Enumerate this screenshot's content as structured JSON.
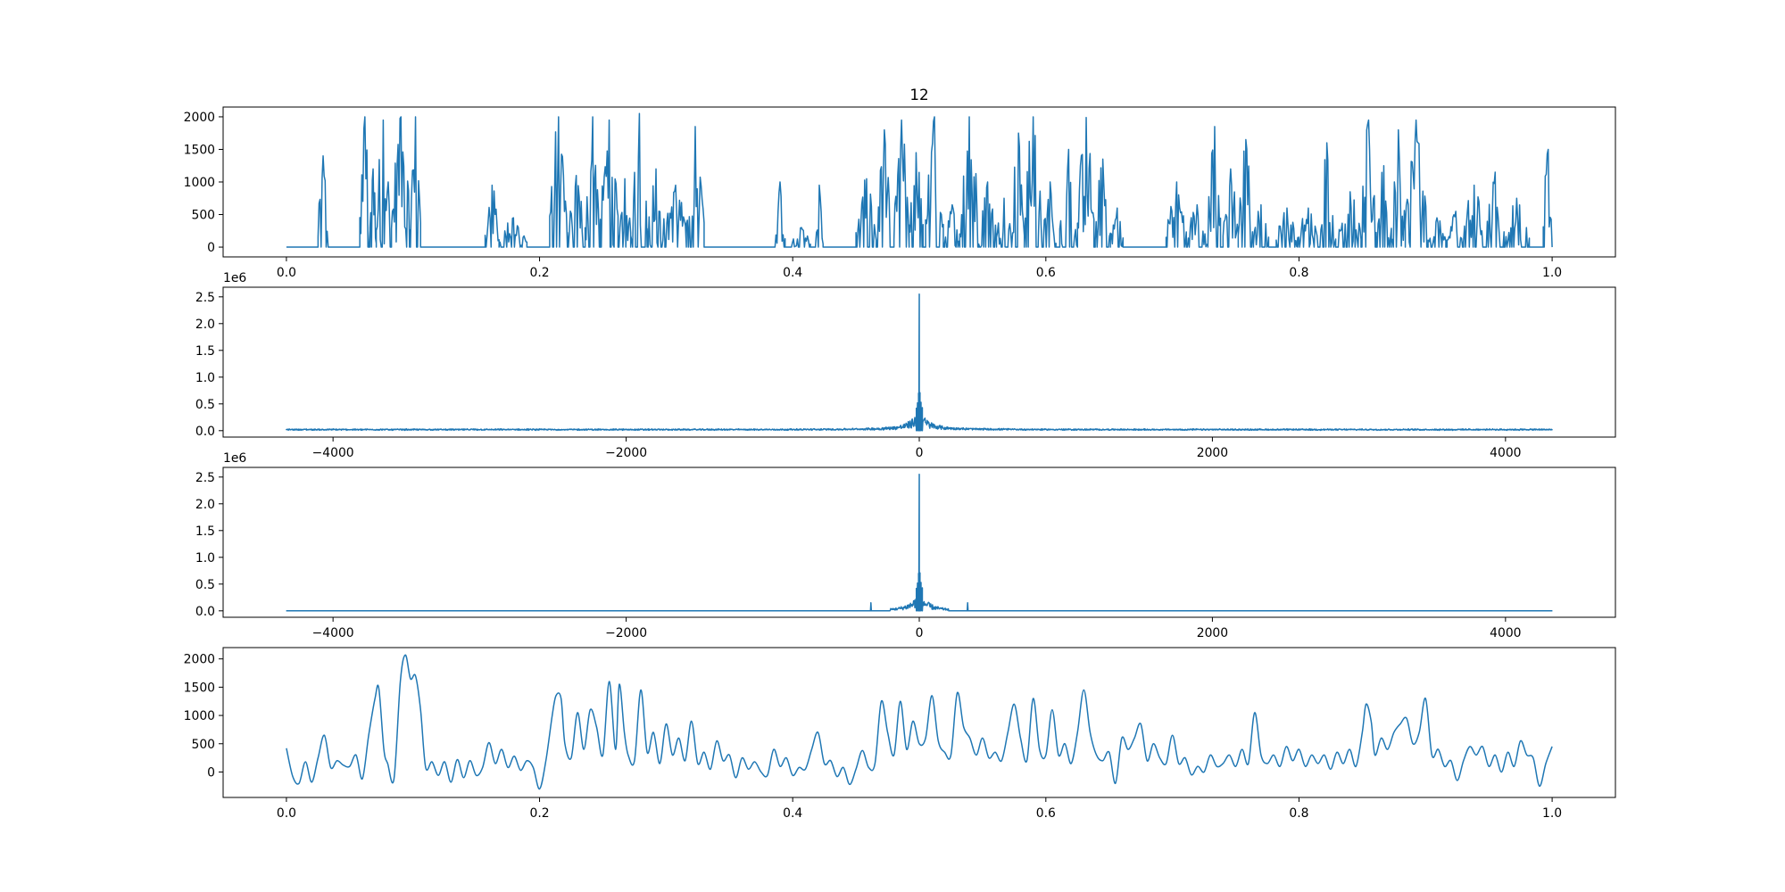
{
  "figure": {
    "background": "#ffffff",
    "line_color": "#1f77b4",
    "axis_color": "#000000"
  },
  "chart_data": [
    {
      "id": "signal",
      "type": "line",
      "title": "12",
      "xlabel": "",
      "ylabel": "",
      "xlim": [
        -0.05,
        1.05
      ],
      "ylim": [
        -150,
        2150
      ],
      "x_ticks": [
        0.0,
        0.2,
        0.4,
        0.6,
        0.8,
        1.0
      ],
      "x_tick_labels": [
        "0.0",
        "0.2",
        "0.4",
        "0.6",
        "0.8",
        "1.0"
      ],
      "y_ticks": [
        0,
        500,
        1000,
        1500,
        2000
      ],
      "y_tick_labels": [
        "0",
        "500",
        "1000",
        "1500",
        "2000"
      ],
      "offset_text": "",
      "grid": false,
      "bursts": [
        [
          0.025,
          0.033,
          1400
        ],
        [
          0.058,
          0.066,
          2000
        ],
        [
          0.066,
          0.071,
          1200
        ],
        [
          0.071,
          0.082,
          1950
        ],
        [
          0.083,
          0.098,
          2000
        ],
        [
          0.098,
          0.106,
          2000
        ],
        [
          0.157,
          0.168,
          950
        ],
        [
          0.168,
          0.19,
          450
        ],
        [
          0.208,
          0.222,
          2000
        ],
        [
          0.222,
          0.236,
          1100
        ],
        [
          0.236,
          0.248,
          2000
        ],
        [
          0.248,
          0.262,
          1950
        ],
        [
          0.262,
          0.272,
          1050
        ],
        [
          0.272,
          0.285,
          2050
        ],
        [
          0.285,
          0.299,
          1200
        ],
        [
          0.299,
          0.316,
          950
        ],
        [
          0.316,
          0.33,
          1850
        ],
        [
          0.386,
          0.394,
          1000
        ],
        [
          0.399,
          0.414,
          300
        ],
        [
          0.418,
          0.424,
          950
        ],
        [
          0.45,
          0.466,
          1050
        ],
        [
          0.467,
          0.477,
          1800
        ],
        [
          0.48,
          0.492,
          1950
        ],
        [
          0.492,
          0.503,
          1450
        ],
        [
          0.505,
          0.519,
          2000
        ],
        [
          0.52,
          0.532,
          650
        ],
        [
          0.532,
          0.547,
          2000
        ],
        [
          0.547,
          0.561,
          1000
        ],
        [
          0.561,
          0.573,
          750
        ],
        [
          0.573,
          0.583,
          1750
        ],
        [
          0.583,
          0.597,
          2000
        ],
        [
          0.598,
          0.608,
          1000
        ],
        [
          0.611,
          0.625,
          1500
        ],
        [
          0.625,
          0.638,
          1990
        ],
        [
          0.639,
          0.651,
          1350
        ],
        [
          0.651,
          0.661,
          600
        ],
        [
          0.695,
          0.711,
          1000
        ],
        [
          0.711,
          0.728,
          650
        ],
        [
          0.728,
          0.738,
          1850
        ],
        [
          0.74,
          0.752,
          1200
        ],
        [
          0.752,
          0.764,
          1650
        ],
        [
          0.764,
          0.776,
          650
        ],
        [
          0.782,
          0.799,
          600
        ],
        [
          0.799,
          0.815,
          600
        ],
        [
          0.815,
          0.829,
          1600
        ],
        [
          0.831,
          0.849,
          850
        ],
        [
          0.849,
          0.861,
          1950
        ],
        [
          0.861,
          0.873,
          1250
        ],
        [
          0.873,
          0.884,
          1800
        ],
        [
          0.884,
          0.901,
          1950
        ],
        [
          0.902,
          0.916,
          450
        ],
        [
          0.917,
          0.93,
          550
        ],
        [
          0.93,
          0.946,
          950
        ],
        [
          0.948,
          0.962,
          1150
        ],
        [
          0.962,
          0.982,
          750
        ],
        [
          0.993,
          1.0,
          1500
        ]
      ]
    },
    {
      "id": "fft-spectrum",
      "type": "line",
      "title": "",
      "xlabel": "",
      "ylabel": "",
      "xlim": [
        -4750,
        4750
      ],
      "ylim": [
        -120000,
        2680000
      ],
      "x_ticks": [
        -4000,
        -2000,
        0,
        2000,
        4000
      ],
      "x_tick_labels": [
        "−4000",
        "−2000",
        "0",
        "2000",
        "4000"
      ],
      "y_ticks": [
        0,
        500000,
        1000000,
        1500000,
        2000000,
        2500000
      ],
      "y_tick_labels": [
        "0.0",
        "0.5",
        "1.0",
        "1.5",
        "2.0",
        "2.5"
      ],
      "offset_text": "1e6",
      "grid": false,
      "freq_range": [
        -4320,
        4320
      ],
      "dc_peak": 2550000,
      "near_peaks": [
        [
          -5,
          700000
        ],
        [
          5,
          710000
        ],
        [
          -12,
          520000
        ],
        [
          12,
          530000
        ],
        [
          -20,
          420000
        ],
        [
          21,
          430000
        ]
      ],
      "floor": 25000
    },
    {
      "id": "filtered-spectrum",
      "type": "line",
      "title": "",
      "xlabel": "",
      "ylabel": "",
      "xlim": [
        -4750,
        4750
      ],
      "ylim": [
        -120000,
        2680000
      ],
      "x_ticks": [
        -4000,
        -2000,
        0,
        2000,
        4000
      ],
      "x_tick_labels": [
        "−4000",
        "−2000",
        "0",
        "2000",
        "4000"
      ],
      "y_ticks": [
        0,
        500000,
        1000000,
        1500000,
        2000000,
        2500000
      ],
      "y_tick_labels": [
        "0.0",
        "0.5",
        "1.0",
        "1.5",
        "2.0",
        "2.5"
      ],
      "offset_text": "1e6",
      "grid": false,
      "freq_range": [
        -4320,
        4320
      ],
      "dc_peak": 2550000,
      "near_peaks": [
        [
          -5,
          700000
        ],
        [
          5,
          710000
        ],
        [
          -12,
          520000
        ],
        [
          12,
          530000
        ],
        [
          -20,
          420000
        ],
        [
          21,
          430000
        ]
      ],
      "cutoff": 200,
      "isolated_peaks": [
        [
          -330,
          150000
        ],
        [
          330,
          150000
        ],
        [
          -190,
          110000
        ],
        [
          190,
          100000
        ]
      ]
    },
    {
      "id": "reconstructed-signal",
      "type": "line",
      "title": "",
      "xlabel": "",
      "ylabel": "",
      "xlim": [
        -0.05,
        1.05
      ],
      "ylim": [
        -450,
        2200
      ],
      "x_ticks": [
        0.0,
        0.2,
        0.4,
        0.6,
        0.8,
        1.0
      ],
      "x_tick_labels": [
        "0.0",
        "0.2",
        "0.4",
        "0.6",
        "0.8",
        "1.0"
      ],
      "y_ticks": [
        0,
        500,
        1000,
        1500,
        2000
      ],
      "y_tick_labels": [
        "0",
        "500",
        "1000",
        "1500",
        "2000"
      ],
      "offset_text": "",
      "grid": false,
      "points": [
        [
          0.0,
          420
        ],
        [
          0.005,
          -80
        ],
        [
          0.01,
          -200
        ],
        [
          0.015,
          180
        ],
        [
          0.02,
          -180
        ],
        [
          0.025,
          250
        ],
        [
          0.03,
          650
        ],
        [
          0.035,
          80
        ],
        [
          0.04,
          200
        ],
        [
          0.045,
          120
        ],
        [
          0.05,
          100
        ],
        [
          0.055,
          300
        ],
        [
          0.06,
          -120
        ],
        [
          0.065,
          650
        ],
        [
          0.07,
          1300
        ],
        [
          0.073,
          1480
        ],
        [
          0.077,
          400
        ],
        [
          0.08,
          150
        ],
        [
          0.085,
          -120
        ],
        [
          0.09,
          1600
        ],
        [
          0.094,
          2070
        ],
        [
          0.098,
          1650
        ],
        [
          0.102,
          1700
        ],
        [
          0.106,
          1100
        ],
        [
          0.11,
          80
        ],
        [
          0.115,
          180
        ],
        [
          0.12,
          -60
        ],
        [
          0.125,
          180
        ],
        [
          0.13,
          -180
        ],
        [
          0.135,
          220
        ],
        [
          0.14,
          -100
        ],
        [
          0.145,
          200
        ],
        [
          0.15,
          -60
        ],
        [
          0.155,
          80
        ],
        [
          0.16,
          520
        ],
        [
          0.165,
          150
        ],
        [
          0.17,
          400
        ],
        [
          0.175,
          80
        ],
        [
          0.18,
          280
        ],
        [
          0.185,
          30
        ],
        [
          0.19,
          200
        ],
        [
          0.195,
          80
        ],
        [
          0.2,
          -300
        ],
        [
          0.205,
          200
        ],
        [
          0.21,
          1000
        ],
        [
          0.213,
          1350
        ],
        [
          0.217,
          1300
        ],
        [
          0.22,
          500
        ],
        [
          0.225,
          250
        ],
        [
          0.23,
          1050
        ],
        [
          0.235,
          400
        ],
        [
          0.24,
          1100
        ],
        [
          0.245,
          800
        ],
        [
          0.25,
          300
        ],
        [
          0.255,
          1600
        ],
        [
          0.26,
          400
        ],
        [
          0.263,
          1550
        ],
        [
          0.267,
          700
        ],
        [
          0.27,
          300
        ],
        [
          0.275,
          200
        ],
        [
          0.28,
          1450
        ],
        [
          0.285,
          350
        ],
        [
          0.29,
          700
        ],
        [
          0.295,
          150
        ],
        [
          0.3,
          850
        ],
        [
          0.305,
          300
        ],
        [
          0.31,
          600
        ],
        [
          0.315,
          200
        ],
        [
          0.32,
          900
        ],
        [
          0.325,
          150
        ],
        [
          0.33,
          350
        ],
        [
          0.335,
          50
        ],
        [
          0.34,
          550
        ],
        [
          0.345,
          200
        ],
        [
          0.35,
          300
        ],
        [
          0.355,
          -100
        ],
        [
          0.36,
          250
        ],
        [
          0.365,
          50
        ],
        [
          0.37,
          180
        ],
        [
          0.375,
          0
        ],
        [
          0.38,
          -60
        ],
        [
          0.385,
          400
        ],
        [
          0.39,
          100
        ],
        [
          0.395,
          250
        ],
        [
          0.4,
          -60
        ],
        [
          0.405,
          80
        ],
        [
          0.41,
          50
        ],
        [
          0.415,
          400
        ],
        [
          0.42,
          700
        ],
        [
          0.425,
          150
        ],
        [
          0.43,
          200
        ],
        [
          0.435,
          -80
        ],
        [
          0.44,
          80
        ],
        [
          0.445,
          -220
        ],
        [
          0.45,
          50
        ],
        [
          0.455,
          380
        ],
        [
          0.46,
          80
        ],
        [
          0.465,
          150
        ],
        [
          0.47,
          1250
        ],
        [
          0.475,
          700
        ],
        [
          0.48,
          300
        ],
        [
          0.485,
          1250
        ],
        [
          0.49,
          400
        ],
        [
          0.495,
          900
        ],
        [
          0.5,
          500
        ],
        [
          0.505,
          600
        ],
        [
          0.51,
          1350
        ],
        [
          0.515,
          550
        ],
        [
          0.52,
          350
        ],
        [
          0.525,
          300
        ],
        [
          0.53,
          1400
        ],
        [
          0.535,
          800
        ],
        [
          0.54,
          600
        ],
        [
          0.545,
          300
        ],
        [
          0.55,
          600
        ],
        [
          0.555,
          250
        ],
        [
          0.56,
          350
        ],
        [
          0.565,
          200
        ],
        [
          0.57,
          700
        ],
        [
          0.575,
          1200
        ],
        [
          0.58,
          600
        ],
        [
          0.585,
          200
        ],
        [
          0.59,
          1300
        ],
        [
          0.595,
          400
        ],
        [
          0.6,
          300
        ],
        [
          0.605,
          1100
        ],
        [
          0.61,
          300
        ],
        [
          0.615,
          500
        ],
        [
          0.62,
          150
        ],
        [
          0.625,
          700
        ],
        [
          0.63,
          1450
        ],
        [
          0.635,
          700
        ],
        [
          0.64,
          300
        ],
        [
          0.645,
          200
        ],
        [
          0.65,
          350
        ],
        [
          0.655,
          -200
        ],
        [
          0.66,
          600
        ],
        [
          0.665,
          400
        ],
        [
          0.67,
          600
        ],
        [
          0.675,
          850
        ],
        [
          0.68,
          200
        ],
        [
          0.685,
          500
        ],
        [
          0.69,
          250
        ],
        [
          0.695,
          150
        ],
        [
          0.7,
          650
        ],
        [
          0.705,
          150
        ],
        [
          0.71,
          250
        ],
        [
          0.715,
          -50
        ],
        [
          0.72,
          100
        ],
        [
          0.725,
          0
        ],
        [
          0.73,
          300
        ],
        [
          0.735,
          100
        ],
        [
          0.74,
          150
        ],
        [
          0.745,
          300
        ],
        [
          0.75,
          100
        ],
        [
          0.755,
          400
        ],
        [
          0.76,
          150
        ],
        [
          0.765,
          1050
        ],
        [
          0.77,
          300
        ],
        [
          0.775,
          150
        ],
        [
          0.78,
          300
        ],
        [
          0.785,
          100
        ],
        [
          0.79,
          450
        ],
        [
          0.795,
          200
        ],
        [
          0.8,
          400
        ],
        [
          0.805,
          100
        ],
        [
          0.81,
          300
        ],
        [
          0.815,
          150
        ],
        [
          0.82,
          300
        ],
        [
          0.825,
          50
        ],
        [
          0.83,
          350
        ],
        [
          0.835,
          150
        ],
        [
          0.84,
          400
        ],
        [
          0.845,
          100
        ],
        [
          0.85,
          700
        ],
        [
          0.853,
          1200
        ],
        [
          0.857,
          900
        ],
        [
          0.86,
          300
        ],
        [
          0.865,
          600
        ],
        [
          0.87,
          400
        ],
        [
          0.875,
          700
        ],
        [
          0.88,
          850
        ],
        [
          0.885,
          950
        ],
        [
          0.89,
          500
        ],
        [
          0.895,
          700
        ],
        [
          0.9,
          1300
        ],
        [
          0.905,
          300
        ],
        [
          0.91,
          400
        ],
        [
          0.915,
          100
        ],
        [
          0.92,
          200
        ],
        [
          0.925,
          -150
        ],
        [
          0.93,
          200
        ],
        [
          0.935,
          450
        ],
        [
          0.94,
          300
        ],
        [
          0.945,
          450
        ],
        [
          0.95,
          100
        ],
        [
          0.955,
          300
        ],
        [
          0.96,
          0
        ],
        [
          0.965,
          350
        ],
        [
          0.97,
          100
        ],
        [
          0.975,
          550
        ],
        [
          0.98,
          300
        ],
        [
          0.985,
          250
        ],
        [
          0.99,
          -250
        ],
        [
          0.995,
          150
        ],
        [
          1.0,
          450
        ]
      ]
    }
  ]
}
